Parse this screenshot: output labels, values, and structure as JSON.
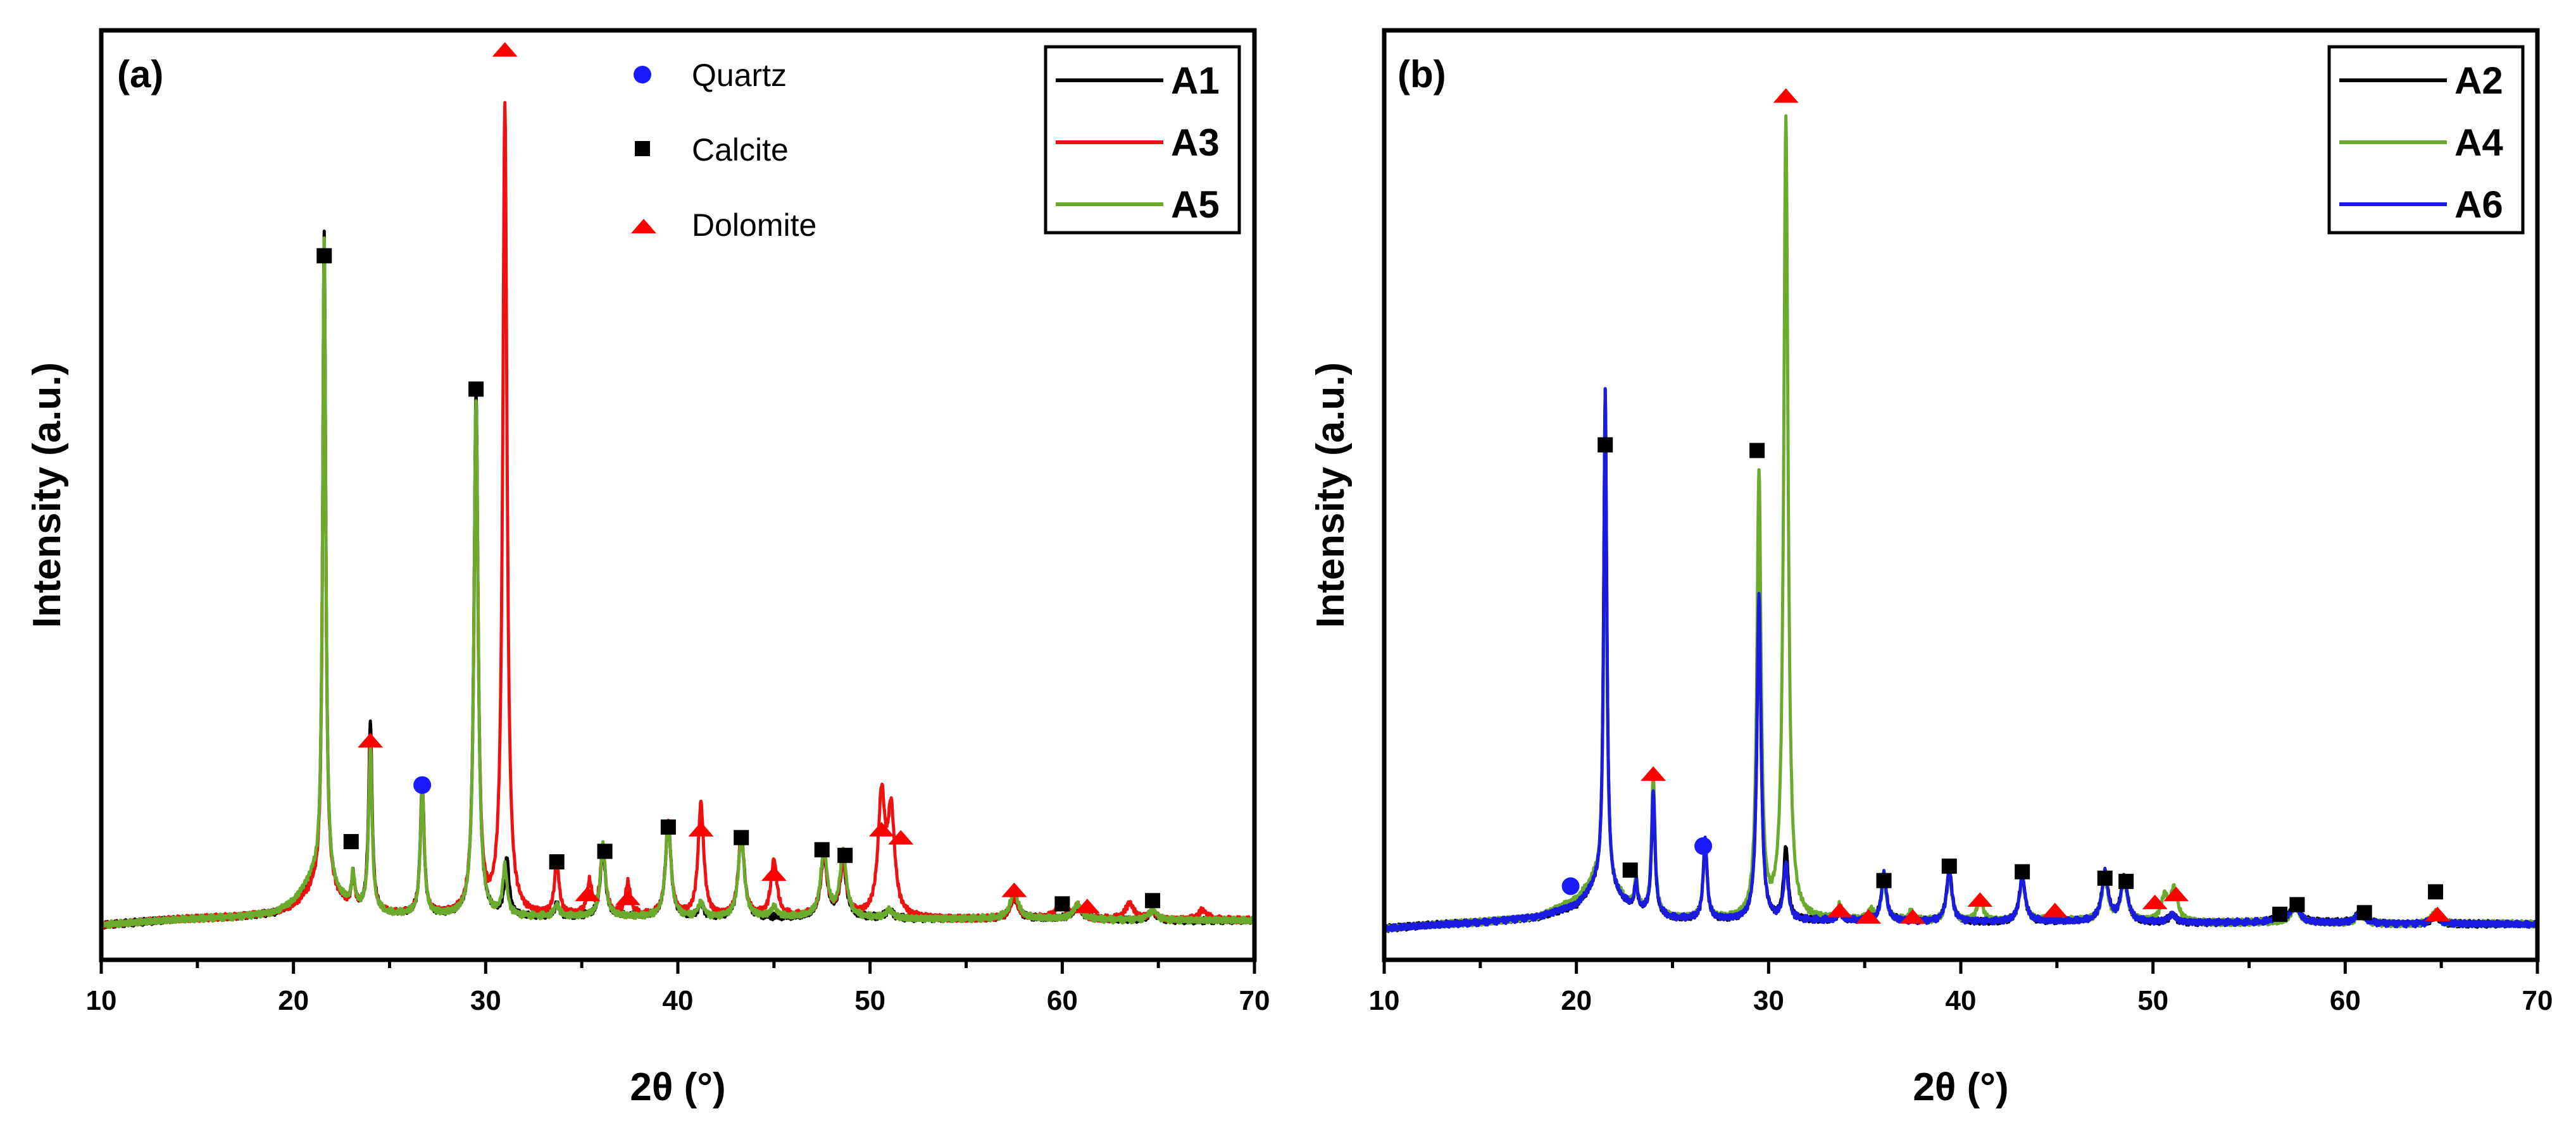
{
  "chart_data": [
    {
      "type": "line",
      "panel": "(a)",
      "xlabel": "2θ (°)",
      "ylabel": "Intensity (a.u.)",
      "xlim": [
        10,
        70
      ],
      "ylim": [
        0,
        1000
      ],
      "xticks": [
        10,
        20,
        30,
        40,
        50,
        60,
        70
      ],
      "grid": false,
      "legend_position": "top-right",
      "phase_legend": [
        {
          "label": "Quartz",
          "marker": "circle",
          "color": "#1a1aff"
        },
        {
          "label": "Calcite",
          "marker": "square",
          "color": "#000000"
        },
        {
          "label": "Dolomite",
          "marker": "triangle",
          "color": "#ff0000"
        }
      ],
      "series": [
        {
          "name": "A1",
          "color": "#000000",
          "baseline": 12,
          "background": [
            [
              10,
              0
            ],
            [
              14,
              6
            ],
            [
              17,
              10
            ],
            [
              19,
              15
            ],
            [
              20,
              25
            ],
            [
              21,
              45
            ],
            [
              22,
              38
            ],
            [
              23,
              20
            ],
            [
              25,
              12
            ],
            [
              30,
              10
            ],
            [
              40,
              9
            ],
            [
              50,
              8
            ],
            [
              60,
              7
            ],
            [
              70,
              5
            ]
          ],
          "peaks": [
            [
              21.6,
              820
            ],
            [
              23.1,
              40
            ],
            [
              24.0,
              235
            ],
            [
              26.7,
              165
            ],
            [
              29.5,
              650
            ],
            [
              31.1,
              70
            ],
            [
              33.7,
              15
            ],
            [
              36.1,
              85
            ],
            [
              39.5,
              120
            ],
            [
              41.2,
              15
            ],
            [
              43.3,
              105
            ],
            [
              47.6,
              75
            ],
            [
              48.6,
              65
            ],
            [
              51.0,
              10
            ],
            [
              57.5,
              25
            ],
            [
              60.8,
              15
            ],
            [
              64.7,
              10
            ]
          ]
        },
        {
          "name": "A3",
          "color": "#ee1111",
          "baseline": 12,
          "background": [
            [
              10,
              0
            ],
            [
              14,
              6
            ],
            [
              17,
              10
            ],
            [
              19,
              15
            ],
            [
              20,
              22
            ],
            [
              21,
              40
            ],
            [
              22,
              35
            ],
            [
              23,
              20
            ],
            [
              25,
              12
            ],
            [
              30,
              10
            ],
            [
              40,
              9
            ],
            [
              50,
              8
            ],
            [
              60,
              7
            ],
            [
              70,
              5
            ]
          ],
          "peaks": [
            [
              21.6,
              805
            ],
            [
              23.1,
              40
            ],
            [
              24.0,
              215
            ],
            [
              26.7,
              160
            ],
            [
              29.5,
              625
            ],
            [
              31.0,
              1000
            ],
            [
              33.7,
              65
            ],
            [
              35.4,
              40
            ],
            [
              36.1,
              85
            ],
            [
              37.4,
              40
            ],
            [
              39.5,
              115
            ],
            [
              41.2,
              140
            ],
            [
              43.3,
              100
            ],
            [
              45.0,
              70
            ],
            [
              47.6,
              75
            ],
            [
              48.6,
              65
            ],
            [
              50.6,
              145
            ],
            [
              51.1,
              125
            ],
            [
              57.5,
              25
            ],
            [
              59.9,
              20
            ],
            [
              60.8,
              15
            ],
            [
              63.5,
              20
            ],
            [
              64.7,
              10
            ],
            [
              67.3,
              12
            ]
          ]
        },
        {
          "name": "A5",
          "color": "#6aab2e",
          "baseline": 12,
          "background": [
            [
              10,
              0
            ],
            [
              14,
              6
            ],
            [
              17,
              10
            ],
            [
              19,
              15
            ],
            [
              20,
              28
            ],
            [
              21,
              55
            ],
            [
              22,
              40
            ],
            [
              23,
              22
            ],
            [
              25,
              12
            ],
            [
              30,
              10
            ],
            [
              40,
              9
            ],
            [
              50,
              8
            ],
            [
              60,
              7
            ],
            [
              70,
              5
            ]
          ],
          "peaks": [
            [
              21.6,
              805
            ],
            [
              23.1,
              40
            ],
            [
              24.0,
              200
            ],
            [
              26.7,
              160
            ],
            [
              29.5,
              640
            ],
            [
              31.0,
              60
            ],
            [
              33.7,
              15
            ],
            [
              36.1,
              90
            ],
            [
              39.5,
              118
            ],
            [
              41.2,
              18
            ],
            [
              43.3,
              100
            ],
            [
              45.0,
              12
            ],
            [
              47.6,
              85
            ],
            [
              48.6,
              80
            ],
            [
              51.0,
              10
            ],
            [
              57.5,
              35
            ],
            [
              60.8,
              18
            ],
            [
              64.7,
              12
            ]
          ]
        }
      ],
      "phase_markers": [
        {
          "phase": "Calcite",
          "x": 21.6,
          "y": 840
        },
        {
          "phase": "Calcite",
          "x": 23.0,
          "y": 115
        },
        {
          "phase": "Dolomite",
          "x": 24.0,
          "y": 240
        },
        {
          "phase": "Quartz",
          "x": 26.7,
          "y": 185
        },
        {
          "phase": "Calcite",
          "x": 29.5,
          "y": 675
        },
        {
          "phase": "Dolomite",
          "x": 31.0,
          "y": 1095
        },
        {
          "phase": "Calcite",
          "x": 33.7,
          "y": 90
        },
        {
          "phase": "Dolomite",
          "x": 35.3,
          "y": 50
        },
        {
          "phase": "Calcite",
          "x": 36.2,
          "y": 103
        },
        {
          "phase": "Dolomite",
          "x": 37.4,
          "y": 45
        },
        {
          "phase": "Calcite",
          "x": 39.5,
          "y": 133
        },
        {
          "phase": "Dolomite",
          "x": 41.2,
          "y": 130
        },
        {
          "phase": "Calcite",
          "x": 43.3,
          "y": 120
        },
        {
          "phase": "Dolomite",
          "x": 45.0,
          "y": 75
        },
        {
          "phase": "Calcite",
          "x": 47.5,
          "y": 105
        },
        {
          "phase": "Calcite",
          "x": 48.7,
          "y": 98
        },
        {
          "phase": "Dolomite",
          "x": 50.6,
          "y": 130
        },
        {
          "phase": "Dolomite",
          "x": 51.6,
          "y": 120
        },
        {
          "phase": "Dolomite",
          "x": 57.5,
          "y": 55
        },
        {
          "phase": "Calcite",
          "x": 60.0,
          "y": 38
        },
        {
          "phase": "Dolomite",
          "x": 61.3,
          "y": 35
        },
        {
          "phase": "Calcite",
          "x": 64.7,
          "y": 42
        }
      ]
    },
    {
      "type": "line",
      "panel": "(b)",
      "xlabel": "2θ (°)",
      "ylabel": "Intensity (a.u.)",
      "xlim": [
        10,
        70
      ],
      "ylim": [
        0,
        1000
      ],
      "xticks": [
        10,
        20,
        30,
        40,
        50,
        60,
        70
      ],
      "grid": false,
      "legend_position": "top-right",
      "series": [
        {
          "name": "A2",
          "color": "#000000",
          "baseline": 12,
          "background": [
            [
              10,
              0
            ],
            [
              15,
              8
            ],
            [
              18,
              15
            ],
            [
              20,
              28
            ],
            [
              21,
              50
            ],
            [
              22,
              40
            ],
            [
              23,
              22
            ],
            [
              25,
              12
            ],
            [
              30,
              10
            ],
            [
              40,
              9
            ],
            [
              50,
              8
            ],
            [
              60,
              7
            ],
            [
              70,
              5
            ]
          ],
          "peaks": [
            [
              21.5,
              625
            ],
            [
              23.1,
              35
            ],
            [
              24.0,
              150
            ],
            [
              26.7,
              100
            ],
            [
              29.5,
              405
            ],
            [
              30.9,
              90
            ],
            [
              33.7,
              10
            ],
            [
              36.0,
              60
            ],
            [
              39.4,
              65
            ],
            [
              43.2,
              55
            ],
            [
              47.5,
              60
            ],
            [
              48.5,
              55
            ],
            [
              51.0,
              10
            ],
            [
              56.6,
              12
            ],
            [
              57.4,
              22
            ],
            [
              60.8,
              15
            ],
            [
              64.7,
              10
            ]
          ]
        },
        {
          "name": "A4",
          "color": "#6aab2e",
          "baseline": 12,
          "background": [
            [
              10,
              0
            ],
            [
              15,
              8
            ],
            [
              18,
              15
            ],
            [
              20,
              35
            ],
            [
              21,
              60
            ],
            [
              22,
              45
            ],
            [
              23,
              22
            ],
            [
              25,
              12
            ],
            [
              30,
              10
            ],
            [
              40,
              9
            ],
            [
              50,
              8
            ],
            [
              60,
              7
            ],
            [
              70,
              5
            ]
          ],
          "peaks": [
            [
              21.5,
              545
            ],
            [
              23.1,
              40
            ],
            [
              24.0,
              175
            ],
            [
              26.7,
              95
            ],
            [
              29.5,
              555
            ],
            [
              30.9,
              1000
            ],
            [
              33.7,
              18
            ],
            [
              35.3,
              12
            ],
            [
              36.0,
              50
            ],
            [
              37.4,
              10
            ],
            [
              39.4,
              55
            ],
            [
              41.0,
              30
            ],
            [
              43.2,
              50
            ],
            [
              44.9,
              15
            ],
            [
              47.5,
              52
            ],
            [
              48.5,
              50
            ],
            [
              50.6,
              30
            ],
            [
              51.1,
              40
            ],
            [
              57.4,
              20
            ],
            [
              60.8,
              12
            ],
            [
              64.7,
              15
            ]
          ]
        },
        {
          "name": "A6",
          "color": "#1a1ae0",
          "baseline": 12,
          "background": [
            [
              10,
              0
            ],
            [
              15,
              8
            ],
            [
              18,
              15
            ],
            [
              20,
              28
            ],
            [
              21,
              50
            ],
            [
              22,
              40
            ],
            [
              23,
              22
            ],
            [
              25,
              12
            ],
            [
              30,
              10
            ],
            [
              40,
              9
            ],
            [
              50,
              8
            ],
            [
              60,
              7
            ],
            [
              70,
              5
            ]
          ],
          "peaks": [
            [
              21.5,
              625
            ],
            [
              23.1,
              35
            ],
            [
              24.0,
              155
            ],
            [
              26.7,
              100
            ],
            [
              29.5,
              405
            ],
            [
              30.9,
              70
            ],
            [
              33.7,
              10
            ],
            [
              36.0,
              60
            ],
            [
              39.4,
              62
            ],
            [
              43.2,
              55
            ],
            [
              47.5,
              60
            ],
            [
              48.5,
              55
            ],
            [
              51.0,
              10
            ],
            [
              56.6,
              12
            ],
            [
              57.4,
              22
            ],
            [
              60.8,
              15
            ],
            [
              64.7,
              10
            ]
          ]
        }
      ],
      "phase_markers": [
        {
          "phase": "Quartz",
          "x": 19.7,
          "y": 65
        },
        {
          "phase": "Calcite",
          "x": 21.5,
          "y": 615
        },
        {
          "phase": "Calcite",
          "x": 22.8,
          "y": 85
        },
        {
          "phase": "Dolomite",
          "x": 24.0,
          "y": 205
        },
        {
          "phase": "Quartz",
          "x": 26.6,
          "y": 115
        },
        {
          "phase": "Calcite",
          "x": 29.4,
          "y": 608
        },
        {
          "phase": "Dolomite",
          "x": 30.9,
          "y": 1050
        },
        {
          "phase": "Calcite",
          "x": 36.0,
          "y": 72
        },
        {
          "phase": "Dolomite",
          "x": 33.7,
          "y": 35
        },
        {
          "phase": "Dolomite",
          "x": 35.2,
          "y": 27
        },
        {
          "phase": "Dolomite",
          "x": 37.5,
          "y": 27
        },
        {
          "phase": "Calcite",
          "x": 39.4,
          "y": 90
        },
        {
          "phase": "Dolomite",
          "x": 41.0,
          "y": 48
        },
        {
          "phase": "Calcite",
          "x": 43.2,
          "y": 83
        },
        {
          "phase": "Dolomite",
          "x": 44.9,
          "y": 35
        },
        {
          "phase": "Calcite",
          "x": 47.5,
          "y": 75
        },
        {
          "phase": "Calcite",
          "x": 48.6,
          "y": 71
        },
        {
          "phase": "Dolomite",
          "x": 50.1,
          "y": 45
        },
        {
          "phase": "Dolomite",
          "x": 51.2,
          "y": 55
        },
        {
          "phase": "Calcite",
          "x": 56.6,
          "y": 30
        },
        {
          "phase": "Calcite",
          "x": 57.5,
          "y": 42
        },
        {
          "phase": "Calcite",
          "x": 61.0,
          "y": 32
        },
        {
          "phase": "Calcite",
          "x": 64.7,
          "y": 58
        },
        {
          "phase": "Dolomite",
          "x": 64.8,
          "y": 30
        }
      ]
    }
  ]
}
